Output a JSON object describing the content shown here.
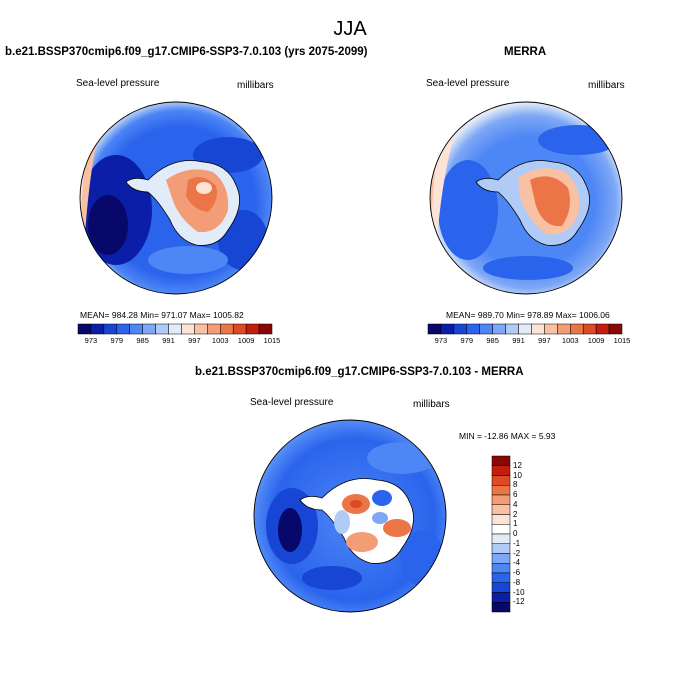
{
  "title": "JJA",
  "panels": {
    "model": {
      "title": "b.e21.BSSP370cmip6.f09_g17.CMIP6-SSP3-7.0.103 (yrs 2075-2099)",
      "left_label": "Sea-level pressure",
      "right_label": "millibars",
      "stats": "MEAN= 984.28   Min= 971.07   Max= 1005.82"
    },
    "obs": {
      "title": "MERRA",
      "left_label": "Sea-level pressure",
      "right_label": "millibars",
      "stats": "MEAN= 989.70   Min= 978.89   Max= 1006.06"
    },
    "diff": {
      "title": "b.e21.BSSP370cmip6.f09_g17.CMIP6-SSP3-7.0.103 - MERRA",
      "left_label": "Sea-level pressure",
      "right_label": "millibars",
      "minmax": "MIN = -12.86  MAX =   5.93"
    }
  },
  "abs_colorbar": {
    "colors": [
      "#08086b",
      "#0b1ea8",
      "#1745d4",
      "#2a64ec",
      "#4d86f5",
      "#7ea7f5",
      "#b0cbf5",
      "#e2ecf8",
      "#fbe3d5",
      "#f8c1a3",
      "#f29d76",
      "#ec7548",
      "#de4a23",
      "#c41d0d",
      "#8a0707"
    ],
    "labels": [
      "973",
      "979",
      "985",
      "991",
      "997",
      "1003",
      "1009",
      "1015"
    ]
  },
  "diff_colorbar": {
    "colors": [
      "#8a0707",
      "#c41d0d",
      "#de4a23",
      "#ec7548",
      "#f29d76",
      "#f8c1a3",
      "#fbe3d5",
      "#ffffff",
      "#e2ecf8",
      "#b0cbf5",
      "#7ea7f5",
      "#4d86f5",
      "#2a64ec",
      "#1745d4",
      "#0b1ea8",
      "#08086b"
    ],
    "labels": [
      "12",
      "10",
      "8",
      "6",
      "4",
      "2",
      "1",
      "0",
      "-1",
      "-2",
      "-4",
      "-6",
      "-8",
      "-10",
      "-12"
    ]
  }
}
